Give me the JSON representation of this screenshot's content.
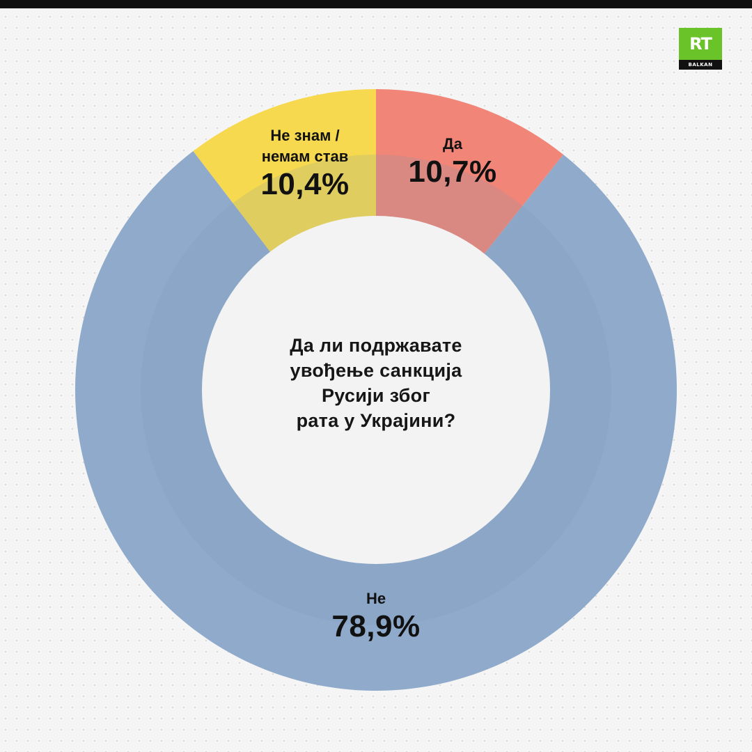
{
  "logo": {
    "brand": "RT",
    "sub": "BALKAN",
    "colors": {
      "green": "#6ac328",
      "strip": "#111111"
    }
  },
  "question": {
    "lines": [
      "Да ли подржавате",
      "увођење санкција",
      "Русији због",
      "рата у Украјини?"
    ]
  },
  "chart_data": {
    "type": "pie",
    "donut": true,
    "start_angle_deg": 0,
    "direction": "clockwise",
    "slices": [
      {
        "name": "Да",
        "label_lines": [
          "Да"
        ],
        "value": 10.7,
        "value_label": "10,7%",
        "color": "#f08578"
      },
      {
        "name": "Не",
        "label_lines": [
          "Не"
        ],
        "value": 78.9,
        "value_label": "78,9%",
        "color": "#8faacb"
      },
      {
        "name": "Не знам / немам став",
        "label_lines": [
          "Не знам /",
          "немам став"
        ],
        "value": 10.4,
        "value_label": "10,4%",
        "color": "#f6d94e"
      }
    ],
    "center_color": "#f3f3f3",
    "inner_ring_overlay": "#7a93b3"
  }
}
